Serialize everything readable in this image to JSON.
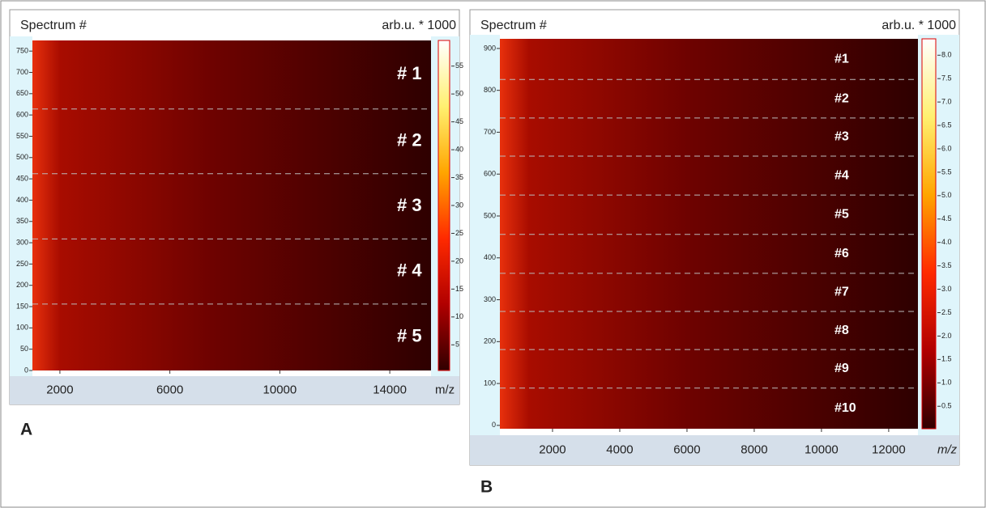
{
  "chart_data": [
    {
      "type": "heatmap",
      "panel_label": "A",
      "y_label": "Spectrum #",
      "colorbar_label": "arb.u. * 1000",
      "x_label": "m/z",
      "xlim": [
        1000,
        15500
      ],
      "xticks": [
        2000,
        6000,
        10000,
        14000
      ],
      "ylim": [
        0,
        775
      ],
      "yticks": [
        0,
        50,
        100,
        150,
        200,
        250,
        300,
        350,
        400,
        450,
        500,
        550,
        600,
        650,
        700,
        750
      ],
      "clim": [
        0.4,
        59.6
      ],
      "cticks": [
        5,
        10,
        15,
        20,
        25,
        30,
        35,
        40,
        45,
        50,
        55
      ],
      "group_boundaries": [
        156,
        309,
        462,
        614
      ],
      "group_labels": [
        "# 1",
        "# 2",
        "# 3",
        "# 4",
        "# 5"
      ]
    },
    {
      "type": "heatmap",
      "panel_label": "B",
      "y_label": "Spectrum #",
      "colorbar_label": "arb.u. * 1000",
      "x_label": "m/z",
      "xlim": [
        434,
        12870
      ],
      "xticks": [
        2000,
        4000,
        6000,
        8000,
        10000,
        12000
      ],
      "ylim": [
        -8,
        923
      ],
      "yticks": [
        0,
        100,
        200,
        300,
        400,
        500,
        600,
        700,
        800,
        900
      ],
      "clim": [
        0.02,
        8.35
      ],
      "cticks": [
        0.5,
        {
          "value": 1,
          "label": "1.0"
        },
        1.5,
        {
          "value": 2,
          "label": "2.0"
        },
        2.5,
        {
          "value": 3,
          "label": "3.0"
        },
        3.5,
        {
          "value": 4,
          "label": "4.0"
        },
        4.5,
        {
          "value": 5,
          "label": "5.0"
        },
        5.5,
        {
          "value": 6,
          "label": "6.0"
        },
        6.5,
        {
          "value": 7,
          "label": "7.0"
        },
        7.5,
        {
          "value": 8,
          "label": "8.0"
        }
      ],
      "group_boundaries": [
        89,
        181,
        272,
        363,
        456,
        550,
        643,
        734,
        826
      ],
      "group_labels": [
        "#1",
        "#2",
        "#3",
        "#4",
        "#5",
        "#6",
        "#7",
        "#8",
        "#9",
        "#10"
      ]
    }
  ]
}
